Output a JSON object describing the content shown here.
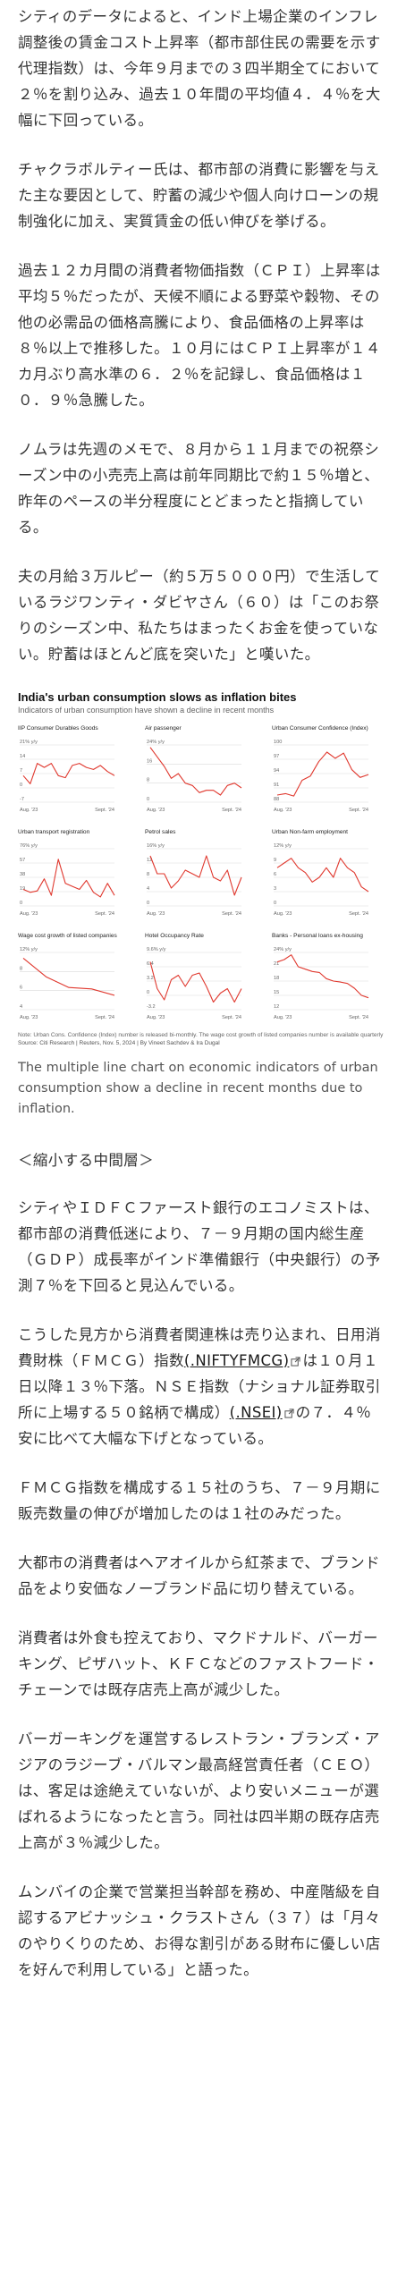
{
  "paragraphs_top": [
    "シティのデータによると、インド上場企業のインフレ調整後の賃金コスト上昇率（都市部住民の需要を示す代理指数）は、今年９月までの３四半期全てにおいて２％を割り込み、過去１０年間の平均値４．４％を大幅に下回っている。",
    "チャクラボルティー氏は、都市部の消費に影響を与えた主な要因として、貯蓄の減少や個人向けローンの規制強化に加え、実質賃金の低い伸びを挙げる。",
    "過去１２カ月間の消費者物価指数（ＣＰＩ）上昇率は平均５％だったが、天候不順による野菜や穀物、その他の必需品の価格高騰により、食品価格の上昇率は８％以上で推移した。１０月にはＣＰＩ上昇率が１４カ月ぶり高水準の６．２％を記録し、食品価格は１０．９％急騰した。",
    "ノムラは先週のメモで、８月から１１月までの祝祭シーズン中の小売売上高は前年同期比で約１５％増と、昨年のペースの半分程度にとどまったと指摘している。",
    "夫の月給３万ルピー（約５万５０００円）で生活しているラジワンティ・ダビヤさん（６０）は「このお祭りのシーズン中、私たちはまったくお金を使っていない。貯蓄はほとんど底を突いた」と嘆いた。"
  ],
  "infographic": {
    "title": "India's urban consumption slows as inflation bites",
    "subtitle": "Indicators of urban consumption have shown a decline in recent months",
    "notes": "Note: Urban Cons. Confidence (Index) number is released bi-monthly. The wage cost growth of listed companies number is available quarterly",
    "source": "Source: Citi Research | Reuters, Nov. 5, 2024 | By Vineet Sachdev & Ira Dugal"
  },
  "chart_data": [
    {
      "type": "line",
      "title": "IIP Consumer Durables Goods",
      "unit": "21% y/y",
      "yticks": [
        "21% y/y",
        "14",
        "7",
        "0",
        "-7"
      ],
      "ylim": [
        -7,
        21
      ],
      "xlabels": [
        "Aug. '23",
        "Sept. '24"
      ],
      "values": [
        6,
        2,
        12,
        10,
        12,
        6,
        5,
        11,
        12,
        10,
        9,
        11,
        8,
        6
      ]
    },
    {
      "type": "line",
      "title": "Air passenger",
      "unit": "24% y/y",
      "yticks": [
        "24% y/y",
        "16",
        "8",
        "0"
      ],
      "ylim": [
        0,
        24
      ],
      "xlabels": [
        "Aug. '23",
        "Sept. '24"
      ],
      "values": [
        23,
        19,
        15,
        10,
        12,
        8,
        7,
        4,
        5,
        5,
        3,
        7,
        8,
        6
      ]
    },
    {
      "type": "line",
      "title": "Urban Consumer Confidence (Index)",
      "unit": "100",
      "yticks": [
        "100",
        "97",
        "94",
        "91",
        "88"
      ],
      "ylim": [
        88,
        100
      ],
      "xlabels": [
        "Aug. '23",
        "Sept. '24"
      ],
      "values": [
        89.5,
        89.8,
        89.3,
        92.6,
        93.5,
        96.5,
        98.5,
        97.2,
        98.3,
        94.8,
        93.2,
        93.8
      ]
    },
    {
      "type": "line",
      "title": "Urban transport registration",
      "unit": "76% y/y",
      "yticks": [
        "76% y/y",
        "57",
        "38",
        "19",
        "0"
      ],
      "ylim": [
        0,
        76
      ],
      "xlabels": [
        "Aug. '23",
        "Sept. '24"
      ],
      "values": [
        22,
        18,
        20,
        36,
        14,
        62,
        30,
        26,
        22,
        34,
        18,
        12,
        30,
        14
      ]
    },
    {
      "type": "line",
      "title": "Petrol sales",
      "unit": "16% y/y",
      "yticks": [
        "16% y/y",
        "12",
        "8",
        "4",
        "0"
      ],
      "ylim": [
        0,
        16
      ],
      "xlabels": [
        "Aug. '23",
        "Sept. '24"
      ],
      "values": [
        14,
        9,
        9,
        5,
        7,
        10,
        9,
        8,
        14,
        8,
        7,
        10,
        3,
        8
      ]
    },
    {
      "type": "line",
      "title": "Urban Non-farm employment",
      "unit": "12% y/y",
      "yticks": [
        "12% y/y",
        "9",
        "6",
        "3",
        "0"
      ],
      "ylim": [
        0,
        12
      ],
      "xlabels": [
        "Aug. '23",
        "Sept. '24"
      ],
      "values": [
        8,
        9,
        10,
        8,
        7,
        5,
        6,
        8,
        6,
        10,
        8,
        7,
        4,
        3
      ]
    },
    {
      "type": "line",
      "title": "Wage cost growth of listed companies",
      "unit": "12% y/y",
      "yticks": [
        "12% y/y",
        "8",
        "6",
        "4"
      ],
      "ylim": [
        4,
        12
      ],
      "xlabels": [
        "Aug. '23",
        "Sept. '24"
      ],
      "values": [
        11.2,
        8.6,
        7.1,
        6.9,
        6.0
      ]
    },
    {
      "type": "line",
      "title": "Hotel Occupancy Rate",
      "unit": "9.6% y/y",
      "yticks": [
        "9.6% y/y",
        "6.4",
        "3.2",
        "0",
        "-3.2"
      ],
      "ylim": [
        -3.2,
        9.6
      ],
      "xlabels": [
        "Aug. '23",
        "Sept. '24"
      ],
      "values": [
        7.5,
        1.5,
        -1.0,
        3.5,
        4.5,
        2.0,
        4.5,
        5.0,
        2.0,
        -1.5,
        0.5,
        1.5,
        -1.5,
        1.5
      ]
    },
    {
      "type": "line",
      "title": "Banks - Personal loans ex-housing",
      "unit": "24% y/y",
      "yticks": [
        "24% y/y",
        "21",
        "18",
        "15",
        "12"
      ],
      "ylim": [
        12,
        24
      ],
      "xlabels": [
        "Aug. '23",
        "Sept. '24"
      ],
      "values": [
        22,
        22.5,
        23.5,
        21,
        20.5,
        20,
        19.8,
        18.5,
        18,
        17.8,
        17.5,
        16.5,
        15,
        14.5
      ]
    }
  ],
  "caption": "The multiple line chart on economic indicators of urban consumption show a decline in recent months due to inflation.",
  "section_heading": "＜縮小する中間層＞",
  "p_mid_1": "シティやＩＤＦＣファースト銀行のエコノミストは、都市部の消費低迷により、７－９月期の国内総生産（ＧＤＰ）成長率がインド準備銀行（中央銀行）の予測７％を下回ると見込んでいる。",
  "p_mid_2": {
    "a": "こうした見方から消費者関連株は売り込まれ、日用消費財株（ＦＭＣＧ）指数",
    "link1": "(.NIFTYFMCG)",
    "b": "は１０月１日以降１３％下落。ＮＳＥ指数（ナショナル証券取引所に上場する５０銘柄で構成）",
    "link2": "(.NSEI)",
    "c": "の７．４％安に比べて大幅な下げとなっている。"
  },
  "paragraphs_bottom": [
    "ＦＭＣＧ指数を構成する１５社のうち、７－９月期に販売数量の伸びが増加したのは１社のみだった。",
    "大都市の消費者はヘアオイルから紅茶まで、ブランド品をより安価なノーブランド品に切り替えている。",
    "消費者は外食も控えており、マクドナルド、バーガーキング、ピザハット、ＫＦＣなどのファストフード・チェーンでは既存店売上高が減少した。",
    "バーガーキングを運営するレストラン・ブランズ・アジアのラジーブ・バルマン最高経営責任者（ＣＥＯ）は、客足は途絶えていないが、より安いメニューが選ばれるようになったと言う。同社は四半期の既存店売上高が３％減少した。",
    "ムンバイの企業で営業担当幹部を務め、中産階級を自認するアビナッシュ・クラストさん（３７）は「月々のやりくりのため、お得な割引がある財布に優しい店を好んで利用している」と語った。"
  ],
  "colors": {
    "line": "#e0382e",
    "grid": "#d9d9d9",
    "text": "#333333",
    "muted": "#666666"
  }
}
